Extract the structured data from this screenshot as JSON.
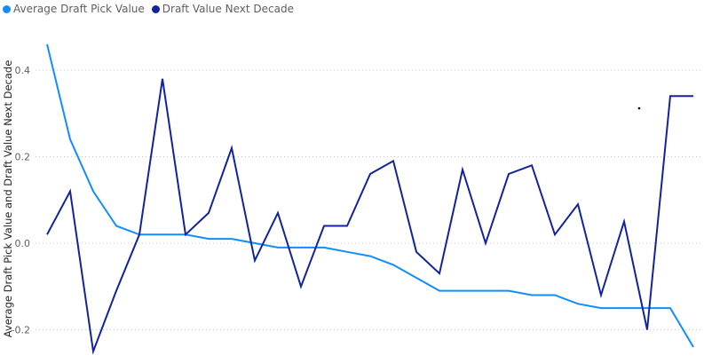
{
  "chart_data": {
    "type": "line",
    "ylabel": "Average Draft Pick Value and Draft Value Next Decade",
    "xlabel": "",
    "ylim": [
      -0.25,
      0.47
    ],
    "yticks": [
      -0.2,
      0.0,
      0.2,
      0.4
    ],
    "ytick_labels": [
      "-0.2",
      "0.0",
      "0.2",
      "0.4"
    ],
    "grid": true,
    "legend_position": "top-left",
    "x": [
      1,
      2,
      3,
      4,
      5,
      6,
      7,
      8,
      9,
      10,
      11,
      12,
      13,
      14,
      15,
      16,
      17,
      18,
      19,
      20,
      21,
      22,
      23,
      24,
      25,
      26,
      27,
      28,
      29
    ],
    "series": [
      {
        "name": "Average Draft Pick Value",
        "color": "#118DFF",
        "values": [
          0.46,
          0.24,
          0.12,
          0.04,
          0.02,
          0.02,
          0.02,
          0.01,
          0.01,
          0.0,
          -0.01,
          -0.01,
          -0.01,
          -0.02,
          -0.03,
          -0.05,
          -0.08,
          -0.11,
          -0.11,
          -0.11,
          -0.11,
          -0.12,
          -0.12,
          -0.14,
          -0.15,
          -0.15,
          -0.15,
          -0.15,
          -0.24
        ]
      },
      {
        "name": "Draft Value Next Decade",
        "color": "#12239E",
        "values": [
          0.02,
          0.12,
          -0.25,
          -0.11,
          0.02,
          0.38,
          0.02,
          0.07,
          0.22,
          -0.04,
          0.07,
          -0.1,
          0.04,
          0.04,
          0.16,
          0.19,
          -0.02,
          -0.07,
          0.17,
          0.0,
          0.16,
          0.18,
          0.02,
          0.09,
          -0.12,
          0.05,
          -0.2,
          0.34,
          0.34
        ]
      }
    ]
  }
}
